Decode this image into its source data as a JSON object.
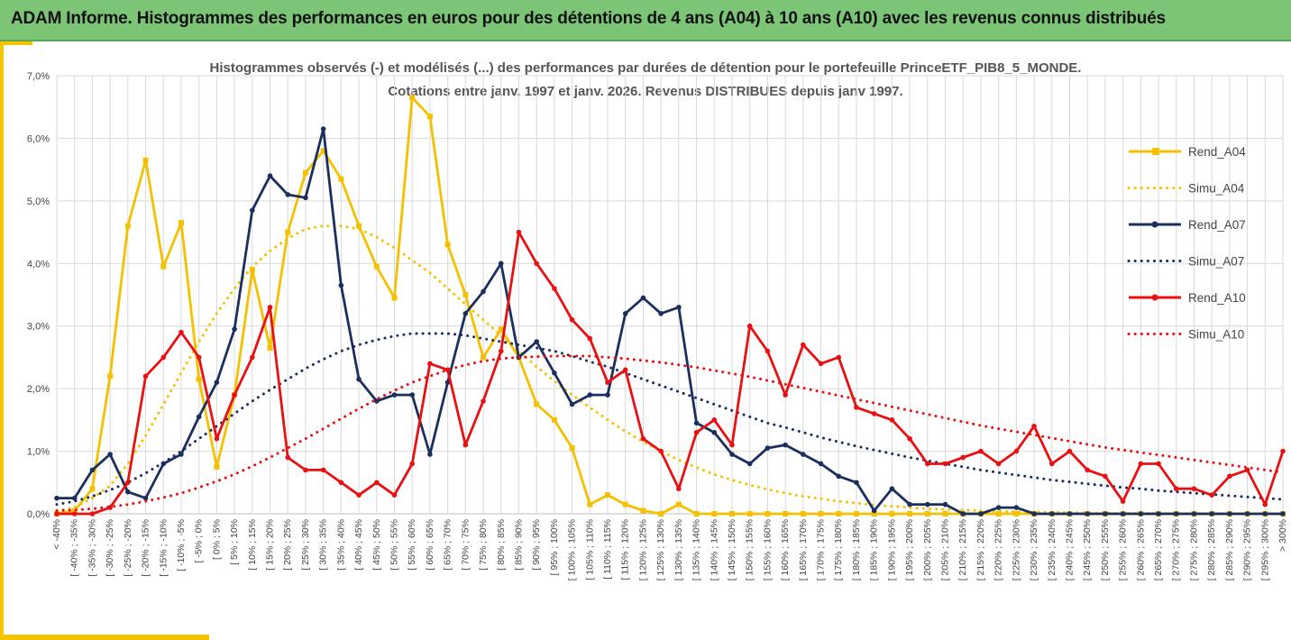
{
  "banner": {
    "title": "ADAM Informe. Histogrammes des performances en euros pour des détentions de 4 ans (A04) à 10 ans (A10) avec les revenus connus distribués"
  },
  "colors": {
    "banner_bg": "#7cc577",
    "accent": "#f5c400",
    "a04": "#f5c000",
    "a07": "#1b2f5e",
    "a10": "#e81010"
  },
  "chart_data": {
    "type": "line",
    "title": "Histogrammes observés (-) et modélisés (...) des performances par durées de détention pour le portefeuille PrinceETF_PIB8_5_MONDE.",
    "subtitle": "Cotations entre janv. 1997 et janv. 2026. Revenus DISTRIBUES depuis janv 1997.",
    "ylim": [
      0,
      7
    ],
    "yticks": [
      "0,0%",
      "1,0%",
      "2,0%",
      "3,0%",
      "4,0%",
      "5,0%",
      "6,0%",
      "7,0%"
    ],
    "grid": true,
    "legend_position": "right",
    "categories": [
      "< -40%",
      "[ -40% ; -35%",
      "[ -35% ; -30%",
      "[ -30% ; -25%",
      "[ -25% ; -20%",
      "[ -20% ; -15%",
      "[ -15% ; -10%",
      "[ -10% ; -5%",
      "[ -5% ; 0%",
      "[ 0% ; 5%",
      "[ 5% ; 10%",
      "[ 10% ; 15%",
      "[ 15% ; 20%",
      "[ 20% ; 25%",
      "[ 25% ; 30%",
      "[ 30% ; 35%",
      "[ 35% ; 40%",
      "[ 40% ; 45%",
      "[ 45% ; 50%",
      "[ 50% ; 55%",
      "[ 55% ; 60%",
      "[ 60% ; 65%",
      "[ 65% ; 70%",
      "[ 70% ; 75%",
      "[ 75% ; 80%",
      "[ 80% ; 85%",
      "[ 85% ; 90%",
      "[ 90% ; 95%",
      "[ 95% ; 100%",
      "[ 100% ; 105%",
      "[ 105% ; 110%",
      "[ 110% ; 115%",
      "[ 115% ; 120%",
      "[ 120% ; 125%",
      "[ 125% ; 130%",
      "[ 130% ; 135%",
      "[ 135% ; 140%",
      "[ 140% ; 145%",
      "[ 145% ; 150%",
      "[ 150% ; 155%",
      "[ 155% ; 160%",
      "[ 160% ; 165%",
      "[ 165% ; 170%",
      "[ 170% ; 175%",
      "[ 175% ; 180%",
      "[ 180% ; 185%",
      "[ 185% ; 190%",
      "[ 190% ; 195%",
      "[ 195% ; 200%",
      "[ 200% ; 205%",
      "[ 205% ; 210%",
      "[ 210% ; 215%",
      "[ 215% ; 220%",
      "[ 220% ; 225%",
      "[ 225% ; 230%",
      "[ 230% ; 235%",
      "[ 235% ; 240%",
      "[ 240% ; 245%",
      "[ 245% ; 250%",
      "[ 250% ; 255%",
      "[ 255% ; 260%",
      "[ 260% ; 265%",
      "[ 265% ; 270%",
      "[ 270% ; 275%",
      "[ 275% ; 280%",
      "[ 280% ; 285%",
      "[ 285% ; 290%",
      "[ 290% ; 295%",
      "[ 295% ; 300%",
      "> 300%"
    ],
    "series": [
      {
        "name": "Rend_A04",
        "style": "solid",
        "marker": "square",
        "color": "#f5c000",
        "values": [
          0,
          0.05,
          0.4,
          2.2,
          4.6,
          5.65,
          3.95,
          4.65,
          2.15,
          0.75,
          1.9,
          3.9,
          2.65,
          4.5,
          5.45,
          5.8,
          5.35,
          4.6,
          3.95,
          3.45,
          6.65,
          6.35,
          4.3,
          3.5,
          2.5,
          2.95,
          2.5,
          1.75,
          1.5,
          1.05,
          0.15,
          0.3,
          0.15,
          0.05,
          0,
          0.15,
          0,
          0,
          0,
          0,
          0,
          0,
          0,
          0,
          0,
          0,
          0,
          0,
          0,
          0,
          0,
          0,
          0,
          0,
          0,
          0,
          0,
          0,
          0,
          0,
          0,
          0,
          0,
          0,
          0,
          0,
          0,
          0,
          0,
          0
        ]
      },
      {
        "name": "Simu_A04",
        "style": "dotted",
        "color": "#f5c000",
        "values": [
          0.05,
          0.1,
          0.25,
          0.45,
          0.8,
          1.25,
          1.75,
          2.25,
          2.75,
          3.2,
          3.6,
          3.95,
          4.2,
          4.4,
          4.55,
          4.6,
          4.6,
          4.55,
          4.42,
          4.25,
          4.05,
          3.85,
          3.6,
          3.35,
          3.1,
          2.85,
          2.6,
          2.35,
          2.12,
          1.9,
          1.7,
          1.5,
          1.32,
          1.15,
          1.0,
          0.86,
          0.74,
          0.63,
          0.54,
          0.46,
          0.39,
          0.33,
          0.28,
          0.24,
          0.2,
          0.17,
          0.14,
          0.12,
          0.1,
          0.08,
          0.07,
          0.06,
          0.05,
          0.04,
          0.035,
          0.03,
          0.025,
          0.02,
          0.015,
          0.012,
          0.01,
          0.008,
          0.006,
          0.005,
          0.004,
          0.003,
          0.002,
          0.002,
          0.001,
          0.001
        ]
      },
      {
        "name": "Rend_A07",
        "style": "solid",
        "marker": "circle",
        "color": "#1b2f5e",
        "values": [
          0.25,
          0.25,
          0.7,
          0.95,
          0.35,
          0.25,
          0.8,
          0.95,
          1.55,
          2.1,
          2.95,
          4.85,
          5.4,
          5.1,
          5.05,
          6.15,
          3.65,
          2.15,
          1.8,
          1.9,
          1.9,
          0.95,
          2.1,
          3.2,
          3.55,
          4.0,
          2.5,
          2.75,
          2.25,
          1.75,
          1.9,
          1.9,
          3.2,
          3.45,
          3.2,
          3.3,
          1.45,
          1.3,
          0.95,
          0.8,
          1.05,
          1.1,
          0.95,
          0.8,
          0.6,
          0.5,
          0.05,
          0.4,
          0.15,
          0.15,
          0.15,
          0,
          0,
          0.1,
          0.1,
          0,
          0,
          0,
          0,
          0,
          0,
          0,
          0,
          0,
          0,
          0,
          0,
          0,
          0,
          0
        ]
      },
      {
        "name": "Simu_A07",
        "style": "dotted",
        "color": "#1b2f5e",
        "values": [
          0.15,
          0.2,
          0.28,
          0.38,
          0.5,
          0.65,
          0.82,
          1.0,
          1.2,
          1.4,
          1.6,
          1.8,
          1.98,
          2.15,
          2.32,
          2.47,
          2.6,
          2.7,
          2.78,
          2.84,
          2.88,
          2.88,
          2.88,
          2.85,
          2.8,
          2.75,
          2.7,
          2.65,
          2.6,
          2.52,
          2.43,
          2.35,
          2.25,
          2.15,
          2.05,
          1.95,
          1.85,
          1.75,
          1.65,
          1.55,
          1.45,
          1.38,
          1.3,
          1.22,
          1.15,
          1.08,
          1.02,
          0.96,
          0.9,
          0.85,
          0.8,
          0.75,
          0.7,
          0.66,
          0.62,
          0.58,
          0.54,
          0.51,
          0.48,
          0.45,
          0.42,
          0.4,
          0.37,
          0.35,
          0.33,
          0.31,
          0.29,
          0.27,
          0.25,
          0.23
        ]
      },
      {
        "name": "Rend_A10",
        "style": "solid",
        "marker": "circle",
        "color": "#e81010",
        "values": [
          0,
          0,
          0,
          0.1,
          0.5,
          2.2,
          2.5,
          2.9,
          2.5,
          1.2,
          1.9,
          2.5,
          3.3,
          0.9,
          0.7,
          0.7,
          0.5,
          0.3,
          0.5,
          0.3,
          0.8,
          2.4,
          2.3,
          1.1,
          1.8,
          2.6,
          4.5,
          4.0,
          3.6,
          3.1,
          2.8,
          2.1,
          2.3,
          1.2,
          1.0,
          0.4,
          1.3,
          1.5,
          1.1,
          3.0,
          2.6,
          1.9,
          2.7,
          2.4,
          2.5,
          1.7,
          1.6,
          1.5,
          1.2,
          0.8,
          0.8,
          0.9,
          1.0,
          0.8,
          1.0,
          1.4,
          0.8,
          1.0,
          0.7,
          0.6,
          0.2,
          0.8,
          0.8,
          0.4,
          0.4,
          0.3,
          0.6,
          0.7,
          0.15,
          1.0
        ]
      },
      {
        "name": "Simu_A10",
        "style": "dotted",
        "color": "#e81010",
        "values": [
          0.05,
          0.06,
          0.08,
          0.11,
          0.15,
          0.2,
          0.26,
          0.33,
          0.42,
          0.52,
          0.63,
          0.76,
          0.9,
          1.05,
          1.2,
          1.36,
          1.52,
          1.68,
          1.83,
          1.97,
          2.1,
          2.2,
          2.3,
          2.38,
          2.44,
          2.48,
          2.5,
          2.51,
          2.52,
          2.52,
          2.52,
          2.5,
          2.48,
          2.45,
          2.42,
          2.38,
          2.34,
          2.29,
          2.24,
          2.19,
          2.13,
          2.07,
          2.01,
          1.95,
          1.89,
          1.83,
          1.77,
          1.71,
          1.65,
          1.59,
          1.53,
          1.47,
          1.41,
          1.36,
          1.31,
          1.26,
          1.21,
          1.16,
          1.11,
          1.06,
          1.02,
          0.98,
          0.94,
          0.9,
          0.86,
          0.82,
          0.78,
          0.74,
          0.7,
          0.66
        ]
      }
    ]
  }
}
